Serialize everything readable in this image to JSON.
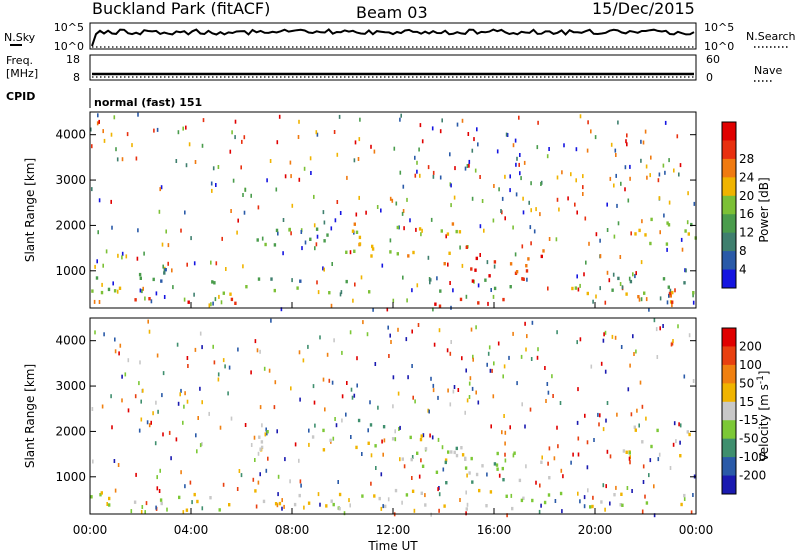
{
  "header": {
    "station": "Buckland Park (fitACF)",
    "beam": "Beam 03",
    "date": "15/Dec/2015"
  },
  "top_panels": {
    "nsky_label": "N.Sky",
    "nsky_ticks": [
      "10^5",
      "10^0"
    ],
    "nsearch_label": "N.Search",
    "nsearch_ticks": [
      "10^5",
      "10^0"
    ],
    "freq_label": "Freq.",
    "freq_unit": "[MHz]",
    "freq_ticks": [
      "18",
      "8"
    ],
    "nave_label": "Nave",
    "nave_ticks": [
      "60",
      "0"
    ],
    "cpid_label": "CPID",
    "cpid_text": "normal (fast) 151"
  },
  "chart_data": [
    {
      "type": "heatmap",
      "panel": "power",
      "xlabel": "",
      "ylabel": "Slant Range [km]",
      "x_ticks": [
        "00:00",
        "04:00",
        "08:00",
        "12:00",
        "16:00",
        "20:00",
        "00:00"
      ],
      "xlim_hours": [
        0,
        24
      ],
      "y_ticks": [
        1000,
        2000,
        3000,
        4000
      ],
      "ylim": [
        180,
        4500
      ],
      "colorbar_label": "Power [dB]",
      "colorbar_ticks": [
        4,
        8,
        12,
        16,
        20,
        24,
        28
      ],
      "colorbar_colors": [
        "#1515e0",
        "#2a5aa8",
        "#3f7f6e",
        "#4a9c4c",
        "#7cc036",
        "#f0b400",
        "#f07a10",
        "#e8300f",
        "#e00000"
      ],
      "regions": [
        {
          "t0": 0,
          "t1": 6.5,
          "r0": 300,
          "r1": 450,
          "level": 28
        },
        {
          "t0": 0,
          "t1": 24,
          "r0": 520,
          "r1": 700,
          "level": 14
        },
        {
          "t0": 0,
          "t1": 24,
          "r0": 760,
          "r1": 880,
          "level": 9
        },
        {
          "t0": 0,
          "t1": 3,
          "r0": 900,
          "r1": 1100,
          "level": 6
        },
        {
          "t0": 6.5,
          "t1": 10,
          "r0": 1600,
          "r1": 2100,
          "level": 17
        },
        {
          "t0": 9.5,
          "t1": 15,
          "r0": 1300,
          "r1": 2100,
          "level": 21
        },
        {
          "t0": 14,
          "t1": 18,
          "r0": 800,
          "r1": 1600,
          "level": 28
        },
        {
          "t0": 13.5,
          "t1": 17,
          "r0": 200,
          "r1": 450,
          "level": 28
        },
        {
          "t0": 21,
          "t1": 24,
          "r0": 1500,
          "r1": 2200,
          "level": 15
        },
        {
          "t0": 21,
          "t1": 24,
          "r0": 300,
          "r1": 600,
          "level": 24
        }
      ]
    },
    {
      "type": "heatmap",
      "panel": "velocity",
      "xlabel": "Time UT",
      "ylabel": "Slant Range [km]",
      "x_ticks": [
        "00:00",
        "04:00",
        "08:00",
        "12:00",
        "16:00",
        "20:00",
        "00:00"
      ],
      "xlim_hours": [
        0,
        24
      ],
      "y_ticks": [
        1000,
        2000,
        3000,
        4000
      ],
      "ylim": [
        180,
        4500
      ],
      "colorbar_label": "Velocity [m s^-1]",
      "colorbar_label_main": "Velocity [m s",
      "colorbar_label_sup": "-1",
      "colorbar_label_end": "]",
      "colorbar_ticks": [
        200,
        100,
        50,
        15,
        -15,
        -50,
        -100,
        -200
      ],
      "colorbar_colors": [
        "#1a1ab0",
        "#2a5aa8",
        "#3f8f6e",
        "#7cc836",
        "#c8c8c8",
        "#f0b400",
        "#f08010",
        "#e84010",
        "#e00000"
      ],
      "regions": [
        {
          "t0": 0,
          "t1": 24,
          "r0": 300,
          "r1": 750,
          "value": 0
        },
        {
          "t0": 6.5,
          "t1": 10,
          "r0": 1600,
          "r1": 2100,
          "value": 0
        },
        {
          "t0": 10,
          "t1": 15,
          "r0": 1400,
          "r1": 2000,
          "value": 0
        },
        {
          "t0": 13,
          "t1": 18.5,
          "r0": 900,
          "r1": 1700,
          "value": 40
        },
        {
          "t0": 10.5,
          "t1": 12,
          "r0": 2000,
          "r1": 2300,
          "value": 40
        },
        {
          "t0": 21,
          "t1": 24,
          "r0": 1500,
          "r1": 2200,
          "value": 0
        }
      ]
    }
  ]
}
